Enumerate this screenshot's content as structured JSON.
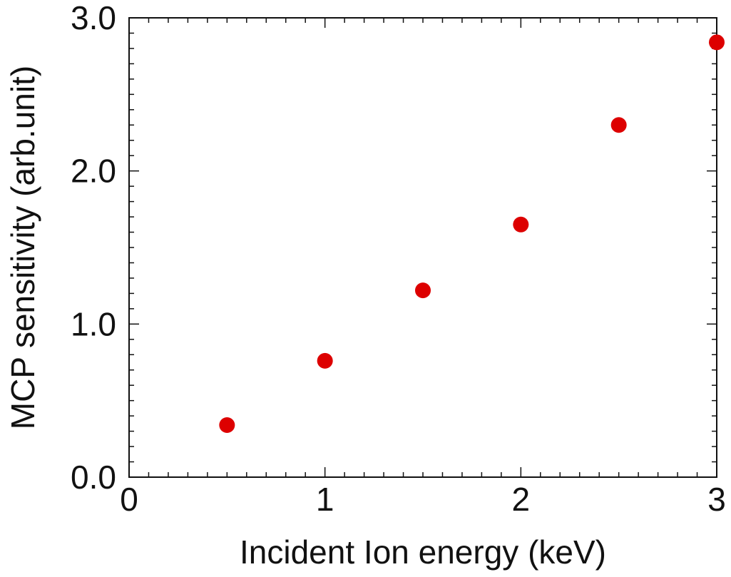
{
  "chart_data": {
    "type": "scatter",
    "title": "",
    "xlabel": "Incident Ion energy (keV)",
    "ylabel": "MCP sensitivity (arb.unit)",
    "xlim": [
      0,
      3
    ],
    "ylim": [
      0,
      3
    ],
    "x_ticks": [
      0,
      1,
      2,
      3
    ],
    "x_tick_labels": [
      "0",
      "1",
      "2",
      "3"
    ],
    "y_ticks": [
      0,
      1,
      2,
      3
    ],
    "y_tick_labels": [
      "0.0",
      "1.0",
      "2.0",
      "3.0"
    ],
    "x_minor_step": 0.1,
    "y_minor_step": 0.1,
    "grid": false,
    "legend": "none",
    "series": [
      {
        "color": "#dd0000",
        "marker": "circle",
        "x": [
          0.5,
          1.0,
          1.5,
          2.0,
          2.5,
          3.0
        ],
        "y": [
          0.34,
          0.76,
          1.22,
          1.65,
          2.3,
          2.84
        ]
      }
    ]
  }
}
